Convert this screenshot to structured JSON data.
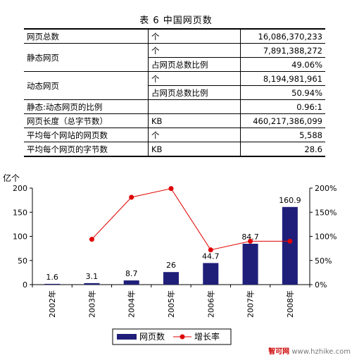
{
  "title": "表 6  中国网页数",
  "table": {
    "rows": [
      {
        "label": "网页总数",
        "unit": "个",
        "value": "16,086,370,233"
      },
      {
        "label": "静态网页",
        "sub": [
          {
            "unit": "个",
            "value": "7,891,388,272"
          },
          {
            "unit": "占网页总数比例",
            "value": "49.06%"
          }
        ]
      },
      {
        "label": "动态网页",
        "sub": [
          {
            "unit": "个",
            "value": "8,194,981,961"
          },
          {
            "unit": "占网页总数比例",
            "value": "50.94%"
          }
        ]
      },
      {
        "label": "静态:动态网页的比例",
        "unit": "",
        "value": "0.96:1"
      },
      {
        "label": "网页长度（总字节数）",
        "unit": "KB",
        "value": "460,217,386,099"
      },
      {
        "label": "平均每个网站的网页数",
        "unit": "个",
        "value": "5,588"
      },
      {
        "label": "平均每个网页的字节数",
        "unit": "KB",
        "value": "28.6"
      }
    ]
  },
  "chart_data": {
    "type": "bar",
    "categories": [
      "2002年",
      "2003年",
      "2004年",
      "2005年",
      "2006年",
      "2007年",
      "2008年"
    ],
    "series": [
      {
        "name": "网页数",
        "type": "bar",
        "axis": "left",
        "values": [
          1.6,
          3.1,
          8.7,
          26,
          44.7,
          84.7,
          160.9
        ],
        "labels": [
          "1.6",
          "3.1",
          "8.7",
          "26",
          "44.7",
          "84.7",
          "160.9"
        ],
        "color": "#1f1f7a"
      },
      {
        "name": "增长率",
        "type": "line",
        "axis": "right",
        "values": [
          null,
          94,
          181,
          199,
          72,
          90,
          90
        ],
        "color": "#e00000"
      }
    ],
    "ylabel": "亿个",
    "ylim": [
      0,
      200
    ],
    "yticks": [
      0,
      50,
      100,
      150,
      200
    ],
    "y2lim": [
      0,
      200
    ],
    "y2ticks": [
      "0%",
      "50%",
      "100%",
      "150%",
      "200%"
    ],
    "grid": false,
    "legend": "bottom"
  },
  "footer": {
    "site": "智可网",
    "url": "www.hzhike.com"
  }
}
